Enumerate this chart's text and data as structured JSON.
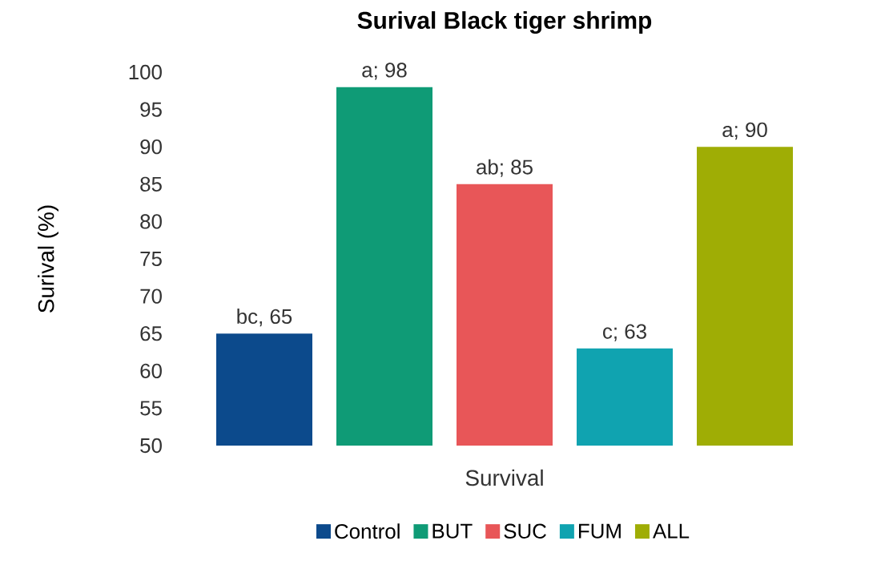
{
  "chart_data": {
    "type": "bar",
    "title": "Surival Black tiger shrimp",
    "ylabel": "Surival (%)",
    "xlabel": "Survival",
    "categories": [
      null
    ],
    "series": [
      {
        "name": "Control",
        "color": "#0c4a8c",
        "values": [
          65
        ],
        "value_labels": [
          "bc, 65"
        ]
      },
      {
        "name": "BUT",
        "color": "#0f9b76",
        "values": [
          98
        ],
        "value_labels": [
          "a; 98"
        ]
      },
      {
        "name": "SUC",
        "color": "#e85658",
        "values": [
          85
        ],
        "value_labels": [
          "ab; 85"
        ]
      },
      {
        "name": "FUM",
        "color": "#10a3b0",
        "values": [
          63
        ],
        "value_labels": [
          "c; 63"
        ]
      },
      {
        "name": "ALL",
        "color": "#9fad05",
        "values": [
          90
        ],
        "value_labels": [
          "a; 90"
        ]
      }
    ],
    "ylim": [
      50,
      100
    ],
    "yticks": [
      {
        "value": 50,
        "label": "50"
      },
      {
        "value": 55,
        "label": "55"
      },
      {
        "value": 60,
        "label": "60"
      },
      {
        "value": 65,
        "label": "65"
      },
      {
        "value": 70,
        "label": "70"
      },
      {
        "value": 75,
        "label": "75"
      },
      {
        "value": 80,
        "label": "80"
      },
      {
        "value": 85,
        "label": "85"
      },
      {
        "value": 90,
        "label": "90"
      },
      {
        "value": 95,
        "label": "95"
      },
      {
        "value": 100,
        "label": "100"
      }
    ],
    "legend": "bottom"
  }
}
